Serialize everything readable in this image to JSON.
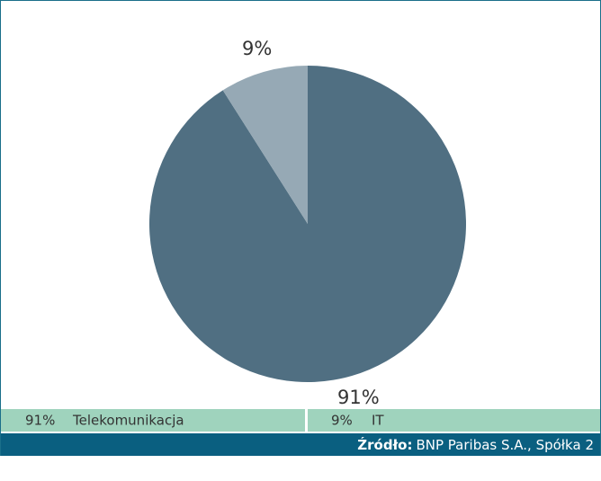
{
  "chart_data": {
    "type": "pie",
    "categories": [
      "Telekomunikacja",
      "IT"
    ],
    "values": [
      91,
      9
    ],
    "value_labels": [
      "91%",
      "9%"
    ],
    "colors": [
      "#506f82",
      "#96a9b5"
    ],
    "source_label": "Źródło:",
    "source": "BNP Paribas S.A., Spółka 2"
  }
}
